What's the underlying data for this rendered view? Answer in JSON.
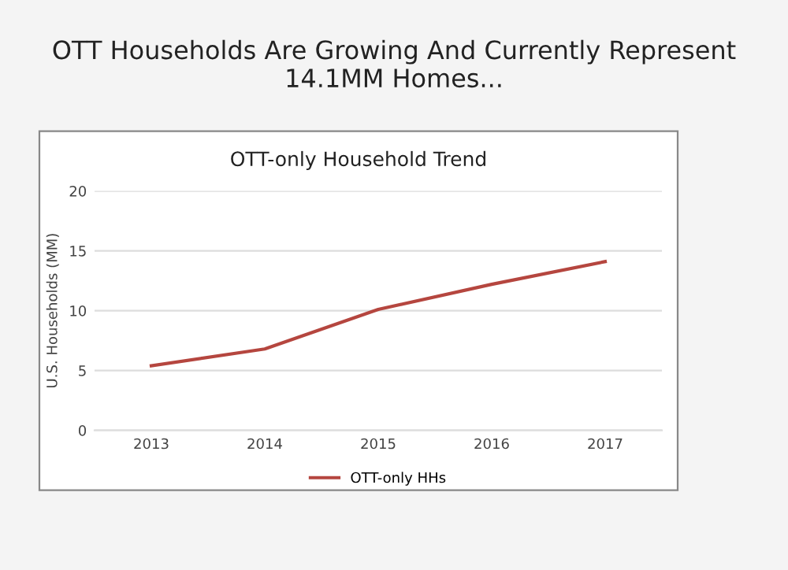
{
  "chart_data": {
    "type": "line",
    "title": "OTT Households Are Growing And Currently Represent 14.1MM Homes...",
    "subtitle": "OTT-only Household Trend",
    "ylabel": "U.S. Households (MM)",
    "categories": [
      "2013",
      "2014",
      "2015",
      "2016",
      "2017"
    ],
    "series": [
      {
        "name": "OTT-only HHs",
        "color": "#b5463f",
        "values": [
          5.4,
          6.8,
          10.1,
          12.2,
          14.1
        ]
      }
    ],
    "ylim": [
      0,
      20
    ],
    "yticks": [
      0,
      5,
      10,
      15,
      20
    ],
    "grid": "y",
    "legend": "bottom",
    "marker": "none",
    "line_style": "solid"
  }
}
